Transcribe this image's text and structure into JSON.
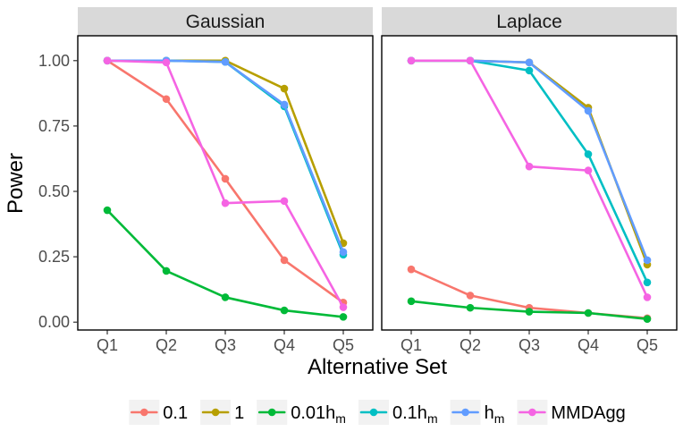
{
  "chart_data": {
    "type": "line",
    "ylabel": "Power",
    "xlabel": "Alternative Set",
    "categories": [
      "Q1",
      "Q2",
      "Q3",
      "Q4",
      "Q5"
    ],
    "ylim": [
      -0.03,
      1.095
    ],
    "xlim": [
      0.5,
      5.5
    ],
    "yticks": [
      {
        "value": 0.0,
        "label": "0.00"
      },
      {
        "value": 0.25,
        "label": "0.25"
      },
      {
        "value": 0.5,
        "label": "0.50"
      },
      {
        "value": 0.75,
        "label": "0.75"
      },
      {
        "value": 1.0,
        "label": "1.00"
      }
    ],
    "legend_position": "bottom",
    "series_styles": [
      {
        "name": "0.1",
        "main": "0.1",
        "sub": "",
        "color": "#F8766D"
      },
      {
        "name": "1",
        "main": "1",
        "sub": "",
        "color": "#B79F00"
      },
      {
        "name": "0.01h_m",
        "main": "0.01h",
        "sub": "m",
        "color": "#00BA38"
      },
      {
        "name": "0.1h_m",
        "main": "0.1h",
        "sub": "m",
        "color": "#00BFC4"
      },
      {
        "name": "h_m",
        "main": "h",
        "sub": "m",
        "color": "#619CFF"
      },
      {
        "name": "MMDAgg",
        "main": "MMDAgg",
        "sub": "",
        "color": "#F564E3"
      }
    ],
    "panels": [
      {
        "title": "Gaussian",
        "series": [
          {
            "name": "0.1",
            "values": [
              1.0,
              0.853,
              0.548,
              0.237,
              0.075
            ]
          },
          {
            "name": "1",
            "values": [
              1.0,
              1.0,
              1.0,
              0.893,
              0.302
            ]
          },
          {
            "name": "0.01h_m",
            "values": [
              0.428,
              0.196,
              0.095,
              0.045,
              0.02
            ]
          },
          {
            "name": "0.1h_m",
            "values": [
              1.0,
              1.0,
              0.995,
              0.825,
              0.258
            ]
          },
          {
            "name": "h_m",
            "values": [
              1.0,
              1.0,
              0.995,
              0.832,
              0.268
            ]
          },
          {
            "name": "MMDAgg",
            "values": [
              1.0,
              0.993,
              0.455,
              0.463,
              0.057
            ]
          }
        ]
      },
      {
        "title": "Laplace",
        "series": [
          {
            "name": "0.1",
            "values": [
              0.202,
              0.102,
              0.055,
              0.035,
              0.015
            ]
          },
          {
            "name": "1",
            "values": [
              1.0,
              1.0,
              0.993,
              0.82,
              0.22
            ]
          },
          {
            "name": "0.01h_m",
            "values": [
              0.08,
              0.055,
              0.04,
              0.035,
              0.012
            ]
          },
          {
            "name": "0.1h_m",
            "values": [
              1.0,
              1.0,
              0.962,
              0.642,
              0.152
            ]
          },
          {
            "name": "h_m",
            "values": [
              1.0,
              1.0,
              0.993,
              0.808,
              0.237
            ]
          },
          {
            "name": "MMDAgg",
            "values": [
              1.0,
              1.0,
              0.595,
              0.58,
              0.095
            ]
          }
        ]
      }
    ]
  }
}
